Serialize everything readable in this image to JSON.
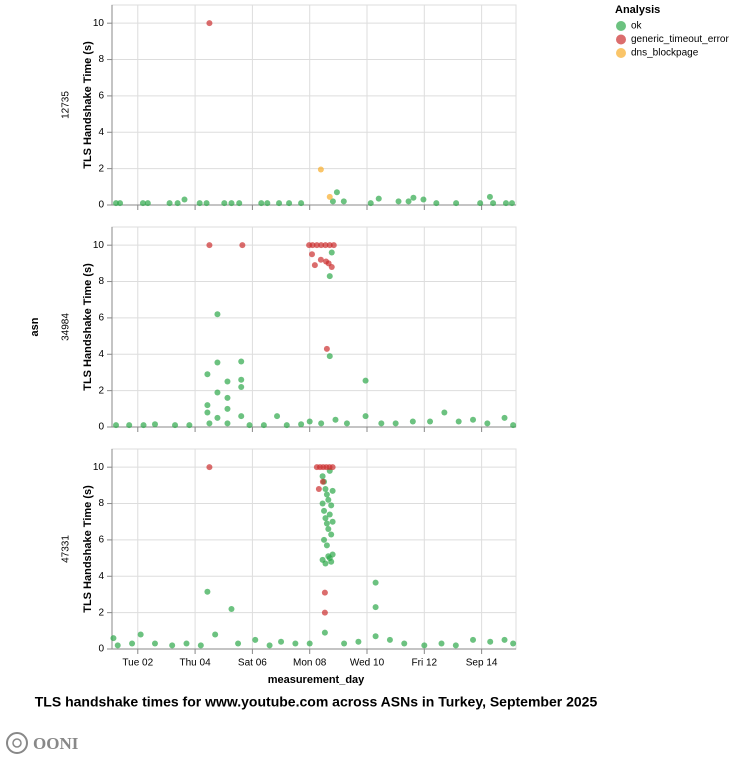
{
  "chart_data": {
    "type": "scatter",
    "title": "TLS handshake times for www.youtube.com across ASNs in Turkey, September 2025",
    "legend_title": "Analysis",
    "row_label": "asn",
    "x_label": "measurement_day",
    "y_label": "TLS Handshake Time (s)",
    "xlim": [
      1.1,
      15.2
    ],
    "xticks": [
      {
        "value": 2,
        "label": "Tue 02"
      },
      {
        "value": 4,
        "label": "Thu 04"
      },
      {
        "value": 6,
        "label": "Sat 06"
      },
      {
        "value": 8,
        "label": "Mon 08"
      },
      {
        "value": 10,
        "label": "Wed 10"
      },
      {
        "value": 12,
        "label": "Fri 12"
      },
      {
        "value": 14,
        "label": "Sep 14"
      }
    ],
    "ylim": [
      0,
      11
    ],
    "yticks": [
      0,
      2,
      4,
      6,
      8,
      10
    ],
    "grid": true,
    "legend": "top-right",
    "series": [
      {
        "name": "ok",
        "color": "#2ea84a"
      },
      {
        "name": "generic_timeout_error",
        "color": "#cc2f2f"
      },
      {
        "name": "dns_blockpage",
        "color": "#f8ad2a"
      }
    ],
    "facets": [
      {
        "label": "12735",
        "series": [
          {
            "x": [
              1.24,
              1.38,
              2.18,
              2.35,
              3.11,
              3.39,
              3.63,
              4.16,
              4.4,
              5.02,
              5.27,
              5.54,
              6.31,
              6.52,
              6.93,
              7.28,
              7.7,
              8.81,
              8.95,
              9.19,
              10.13,
              10.41,
              11.1,
              11.45,
              11.62,
              11.97,
              12.42,
              13.11,
              13.95,
              14.29,
              14.4,
              14.85,
              15.06
            ],
            "values": [
              0.1,
              0.1,
              0.1,
              0.1,
              0.1,
              0.1,
              0.3,
              0.1,
              0.1,
              0.1,
              0.1,
              0.1,
              0.1,
              0.1,
              0.1,
              0.1,
              0.1,
              0.2,
              0.7,
              0.2,
              0.1,
              0.35,
              0.2,
              0.2,
              0.4,
              0.3,
              0.1,
              0.1,
              0.1,
              0.45,
              0.1,
              0.1,
              0.1
            ]
          },
          {
            "x": [
              4.5
            ],
            "values": [
              10
            ]
          },
          {
            "x": [
              8.39,
              8.7
            ],
            "values": [
              1.95,
              0.45
            ]
          }
        ]
      },
      {
        "label": "34984",
        "series": [
          {
            "x": [
              1.24,
              1.7,
              2.2,
              2.6,
              3.3,
              3.8,
              4.43,
              4.43,
              4.43,
              4.5,
              4.78,
              4.78,
              4.78,
              4.78,
              5.13,
              5.13,
              5.13,
              5.13,
              5.61,
              5.61,
              5.61,
              5.61,
              5.9,
              6.4,
              6.86,
              7.2,
              7.7,
              8.0,
              8.4,
              8.7,
              8.77,
              8.7,
              8.9,
              9.3,
              9.95,
              9.95,
              10.5,
              11.0,
              11.6,
              12.2,
              12.7,
              13.2,
              13.7,
              14.2,
              14.8,
              15.1
            ],
            "values": [
              0.1,
              0.1,
              0.1,
              0.15,
              0.1,
              0.1,
              0.8,
              1.2,
              2.9,
              0.2,
              6.2,
              3.55,
              1.9,
              0.5,
              2.5,
              1.6,
              1.0,
              0.2,
              3.6,
              2.6,
              2.2,
              0.6,
              0.1,
              0.1,
              0.6,
              0.1,
              0.15,
              0.3,
              0.2,
              8.3,
              9.6,
              3.9,
              0.4,
              0.2,
              2.55,
              0.6,
              0.2,
              0.2,
              0.3,
              0.3,
              0.8,
              0.3,
              0.4,
              0.2,
              0.5,
              0.1
            ]
          },
          {
            "x": [
              4.5,
              5.65,
              7.98,
              8.1,
              8.25,
              8.4,
              8.55,
              8.7,
              8.84,
              8.08,
              8.18,
              8.39,
              8.57,
              8.66,
              8.77,
              8.6
            ],
            "values": [
              10,
              10,
              10,
              10,
              10,
              10,
              10,
              10,
              10,
              9.5,
              8.9,
              9.2,
              9.1,
              9.0,
              8.8,
              4.3
            ]
          },
          {
            "x": [],
            "values": []
          }
        ]
      },
      {
        "label": "47331",
        "series": [
          {
            "x": [
              1.15,
              1.3,
              1.8,
              2.1,
              2.6,
              3.2,
              3.7,
              4.43,
              4.2,
              4.7,
              5.27,
              5.5,
              6.1,
              6.6,
              7.0,
              7.5,
              8.0,
              8.53,
              8.45,
              8.5,
              8.55,
              8.6,
              8.65,
              8.7,
              8.75,
              8.5,
              8.55,
              8.6,
              8.65,
              8.7,
              8.75,
              8.5,
              8.6,
              8.7,
              8.45,
              8.55,
              8.65,
              8.75,
              8.8,
              8.8,
              8.8,
              8.45,
              9.2,
              9.7,
              10.3,
              10.3,
              10.3,
              10.8,
              11.3,
              12.0,
              12.6,
              13.1,
              13.7,
              14.3,
              14.8,
              15.1
            ],
            "values": [
              0.6,
              0.2,
              0.3,
              0.8,
              0.3,
              0.2,
              0.3,
              3.15,
              0.2,
              0.8,
              2.2,
              0.3,
              0.5,
              0.2,
              0.4,
              0.3,
              0.3,
              0.9,
              9.5,
              9.2,
              8.8,
              8.5,
              8.2,
              9.8,
              7.9,
              7.6,
              7.2,
              6.9,
              6.6,
              7.4,
              6.3,
              6.0,
              5.7,
              5.0,
              4.9,
              4.7,
              5.1,
              4.8,
              8.7,
              7.0,
              5.2,
              8.0,
              0.3,
              0.4,
              3.65,
              2.3,
              0.7,
              0.5,
              0.3,
              0.2,
              0.3,
              0.2,
              0.5,
              0.4,
              0.5,
              0.3
            ]
          },
          {
            "x": [
              4.5,
              8.25,
              8.36,
              8.47,
              8.58,
              8.69,
              8.8,
              8.32,
              8.46,
              8.53,
              8.53
            ],
            "values": [
              10,
              10,
              10,
              10,
              10,
              10,
              10,
              8.8,
              9.2,
              3.1,
              2.0
            ]
          },
          {
            "x": [],
            "values": []
          }
        ]
      }
    ]
  },
  "logo": "OONI"
}
